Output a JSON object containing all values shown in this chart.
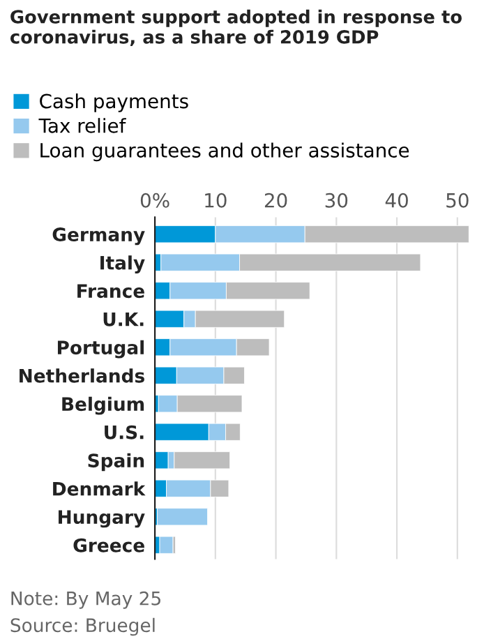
{
  "chart_data": {
    "type": "bar",
    "orientation": "horizontal",
    "stacked": true,
    "title": "Government support adopted in response to coronavirus, as a share of 2019 GDP",
    "categories": [
      "Germany",
      "Italy",
      "France",
      "U.K.",
      "Portugal",
      "Netherlands",
      "Belgium",
      "U.S.",
      "Spain",
      "Denmark",
      "Hungary",
      "Greece"
    ],
    "series": [
      {
        "name": "Cash payments",
        "color": "#0098d8",
        "values": [
          10.0,
          1.0,
          2.5,
          4.8,
          2.5,
          3.6,
          0.6,
          8.9,
          2.2,
          1.9,
          0.4,
          0.8
        ]
      },
      {
        "name": "Tax relief",
        "color": "#95c9ee",
        "values": [
          14.8,
          13.0,
          9.3,
          1.9,
          11.0,
          7.8,
          3.1,
          2.8,
          1.0,
          7.3,
          8.3,
          2.2
        ]
      },
      {
        "name": "Loan guarantees and other assistance",
        "color": "#bdbdbd",
        "values": [
          27.1,
          29.9,
          13.8,
          14.7,
          5.4,
          3.4,
          10.7,
          2.4,
          9.2,
          3.0,
          null,
          0.4
        ]
      }
    ],
    "xlim": [
      0,
      52
    ],
    "xticks": [
      {
        "value": 0,
        "label": "0%"
      },
      10,
      20,
      30,
      40,
      50
    ],
    "grid": "x",
    "legend": "top left",
    "annotations": [
      "Note: By May 25",
      "Source: Bruegel"
    ]
  }
}
